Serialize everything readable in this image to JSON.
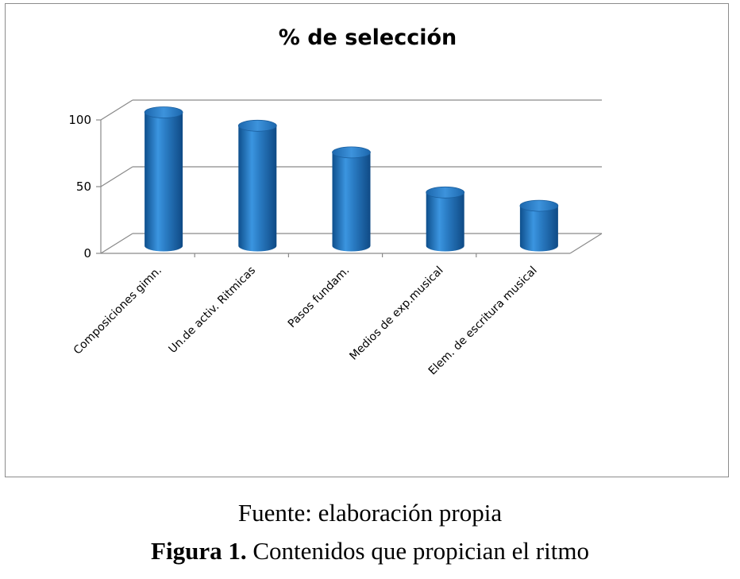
{
  "chart_data": {
    "type": "bar",
    "style": "3d-cylinder",
    "title": "% de selección",
    "categories": [
      "Composiciones gimn.",
      "Un.de  activ. Ritmicas",
      "Pasos fundam.",
      "Medios de exp.musical",
      "Elem. de escritura musical"
    ],
    "values": [
      100,
      90,
      70,
      40,
      30
    ],
    "ylim": [
      0,
      100
    ],
    "yticks": [
      "0",
      "50",
      "100"
    ],
    "grid": true,
    "legend": "none",
    "colors": {
      "bar": "#2a7cc4",
      "bar_dark": "#0e4f8c",
      "bar_light": "#6cb0ea",
      "grid": "#8a8a8a"
    }
  },
  "caption": {
    "source": "Fuente: elaboración propia",
    "figure_label": "Figura 1.",
    "figure_text": " Contenidos que propician el ritmo"
  }
}
